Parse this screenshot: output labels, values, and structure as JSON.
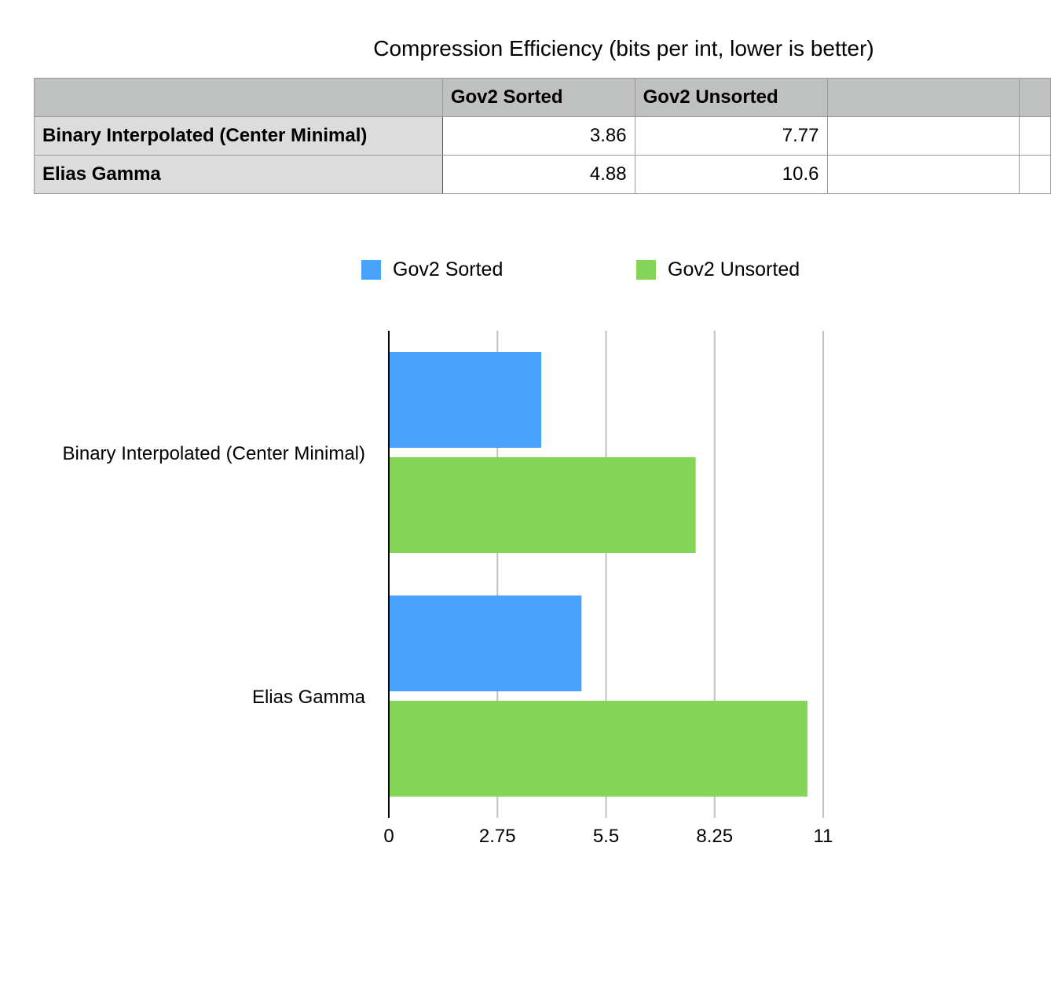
{
  "title": "Compression Efficiency (bits per int, lower is better)",
  "table": {
    "columns": [
      "",
      "Gov2 Sorted",
      "Gov2 Unsorted",
      "",
      ""
    ],
    "rows": [
      {
        "label": "Binary Interpolated (Center Minimal)",
        "values": [
          "3.86",
          "7.77",
          "",
          ""
        ]
      },
      {
        "label": "Elias Gamma",
        "values": [
          "4.88",
          "10.6",
          "",
          ""
        ]
      }
    ]
  },
  "colors": {
    "gov2_sorted": "#47a3fb",
    "gov2_unsorted": "#83d457",
    "gridline": "#c0c0c0",
    "axis": "#000000"
  },
  "chart_data": {
    "type": "bar",
    "orientation": "horizontal",
    "title": "Compression Efficiency (bits per int, lower is better)",
    "categories": [
      "Binary Interpolated (Center Minimal)",
      "Elias Gamma"
    ],
    "series": [
      {
        "name": "Gov2 Sorted",
        "values": [
          3.86,
          4.88
        ]
      },
      {
        "name": "Gov2 Unsorted",
        "values": [
          7.77,
          10.6
        ]
      }
    ],
    "xlim": [
      0,
      11
    ],
    "xticks": [
      "0",
      "2.75",
      "5.5",
      "8.25",
      "11"
    ],
    "xlabel": "",
    "ylabel": "",
    "grid": "vertical",
    "legend": "top"
  }
}
